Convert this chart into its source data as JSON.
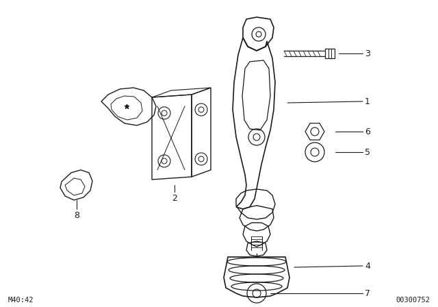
{
  "background_color": "#ffffff",
  "bottom_left_text": "M40:42",
  "bottom_right_text": "00300752",
  "line_color": "#1a1a1a",
  "fig_width": 6.4,
  "fig_height": 4.48,
  "dpi": 100
}
